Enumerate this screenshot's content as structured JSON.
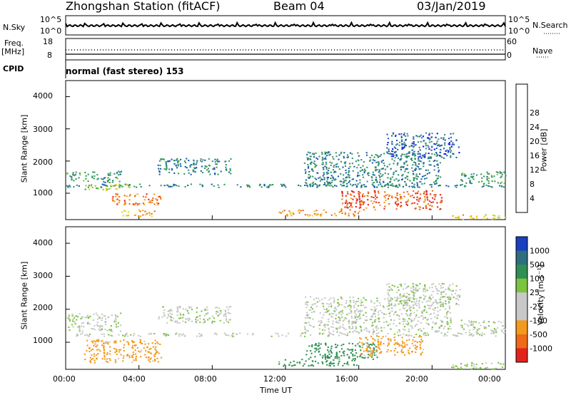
{
  "header": {
    "station": "Zhongshan Station (fitACF)",
    "beam": "Beam 04",
    "date": "03/Jan/2019"
  },
  "left_labels": {
    "nsky": "N.Sky",
    "freq_1": "Freq.",
    "freq_2": "[MHz]",
    "cpid": "CPID"
  },
  "right_labels": {
    "nsearch": "N.Search",
    "nave": "Nave"
  },
  "scales": {
    "nsky_top": "10^5",
    "nsky_bottom": "10^0",
    "freq_top": "18",
    "freq_bottom": "8",
    "nave_top": "60",
    "nave_bottom": "0",
    "nsearch_top": "10^5",
    "nsearch_bottom": "10^0"
  },
  "cpid_text": "normal (fast stereo) 153",
  "colors": {
    "power": [
      "#1515e6",
      "#1d5db3",
      "#3f8f7a",
      "#2f9f4b",
      "#8fc83a",
      "#e8d21c",
      "#f3a21b",
      "#ef6a16",
      "#e2231d"
    ],
    "velocity": [
      "#1a3fbf",
      "#2f6e7e",
      "#2f8f55",
      "#7bc43f",
      "#c8c8c8",
      "#c8c8c8",
      "#f29a1e",
      "#ef6a16",
      "#e2231d"
    ],
    "velocity_ground": "#c0c0c0"
  },
  "chart_data": [
    {
      "type": "heatmap",
      "name": "power",
      "ylabel": "Slant Range [km]",
      "y_ticks": [
        "1000",
        "2000",
        "3000",
        "4000"
      ],
      "y_range": [
        180,
        4500
      ],
      "x_range": [
        "00:00",
        "24:00"
      ],
      "colorbar_label": "Power [dB]",
      "colorbar_ticks": [
        "4",
        "8",
        "12",
        "16",
        "20",
        "24",
        "28"
      ],
      "colorbar_range": [
        0,
        30
      ],
      "bands": [
        {
          "t": [
            0.0,
            24.0
          ],
          "r": [
            1200,
            1300
          ],
          "value": 8
        },
        {
          "t": [
            0.0,
            3.0
          ],
          "r": [
            1350,
            1700
          ],
          "value": 10
        },
        {
          "t": [
            1.0,
            3.5
          ],
          "r": [
            1100,
            1300
          ],
          "value": 16
        },
        {
          "t": [
            2.5,
            5.2
          ],
          "r": [
            650,
            1000
          ],
          "value": 24
        },
        {
          "t": [
            3.0,
            5.0
          ],
          "r": [
            300,
            500
          ],
          "value": 22
        },
        {
          "t": [
            5.0,
            9.0
          ],
          "r": [
            1600,
            2100
          ],
          "value": 8
        },
        {
          "t": [
            11.5,
            16.0
          ],
          "r": [
            300,
            500
          ],
          "value": 22
        },
        {
          "t": [
            13.0,
            20.5
          ],
          "r": [
            1200,
            2300
          ],
          "value": 8
        },
        {
          "t": [
            15.0,
            20.5
          ],
          "r": [
            500,
            1100
          ],
          "value": 26
        },
        {
          "t": [
            17.5,
            21.5
          ],
          "r": [
            2100,
            2900
          ],
          "value": 6
        },
        {
          "t": [
            21.5,
            24.0
          ],
          "r": [
            1300,
            1700
          ],
          "value": 10
        },
        {
          "t": [
            21.0,
            24.0
          ],
          "r": [
            200,
            350
          ],
          "value": 20
        }
      ]
    },
    {
      "type": "heatmap",
      "name": "velocity",
      "ylabel": "Slant Range [km]",
      "y_ticks": [
        "1000",
        "2000",
        "3000",
        "4000"
      ],
      "y_range": [
        180,
        4500
      ],
      "x_range": [
        "00:00",
        "24:00"
      ],
      "x_ticks": [
        "00:00",
        "04:00",
        "08:00",
        "12:00",
        "16:00",
        "20:00",
        "00:00"
      ],
      "xlabel": "Time UT",
      "colorbar_label": "Velocity [m s⁻¹]",
      "colorbar_ticks": [
        "1000",
        "500",
        "100",
        "25",
        "-25",
        "-100",
        "-500",
        "-1000"
      ],
      "bands": [
        {
          "t": [
            0.0,
            24.0
          ],
          "r": [
            1200,
            1300
          ],
          "value": 0
        },
        {
          "t": [
            0.0,
            3.0
          ],
          "r": [
            1350,
            1900
          ],
          "value": 0
        },
        {
          "t": [
            1.0,
            5.2
          ],
          "r": [
            400,
            1100
          ],
          "value": -150
        },
        {
          "t": [
            5.0,
            9.0
          ],
          "r": [
            1600,
            2100
          ],
          "value": 0
        },
        {
          "t": [
            11.5,
            16.0
          ],
          "r": [
            300,
            500
          ],
          "value": 150
        },
        {
          "t": [
            13.0,
            17.0
          ],
          "r": [
            500,
            1000
          ],
          "value": 200
        },
        {
          "t": [
            16.0,
            19.5
          ],
          "r": [
            600,
            1200
          ],
          "value": -150
        },
        {
          "t": [
            13.0,
            21.0
          ],
          "r": [
            1300,
            2400
          ],
          "value": 0
        },
        {
          "t": [
            17.5,
            21.5
          ],
          "r": [
            2100,
            2800
          ],
          "value": 0
        },
        {
          "t": [
            21.5,
            24.0
          ],
          "r": [
            1300,
            1700
          ],
          "value": 0
        },
        {
          "t": [
            21.0,
            24.0
          ],
          "r": [
            200,
            400
          ],
          "value": 50
        }
      ]
    }
  ]
}
